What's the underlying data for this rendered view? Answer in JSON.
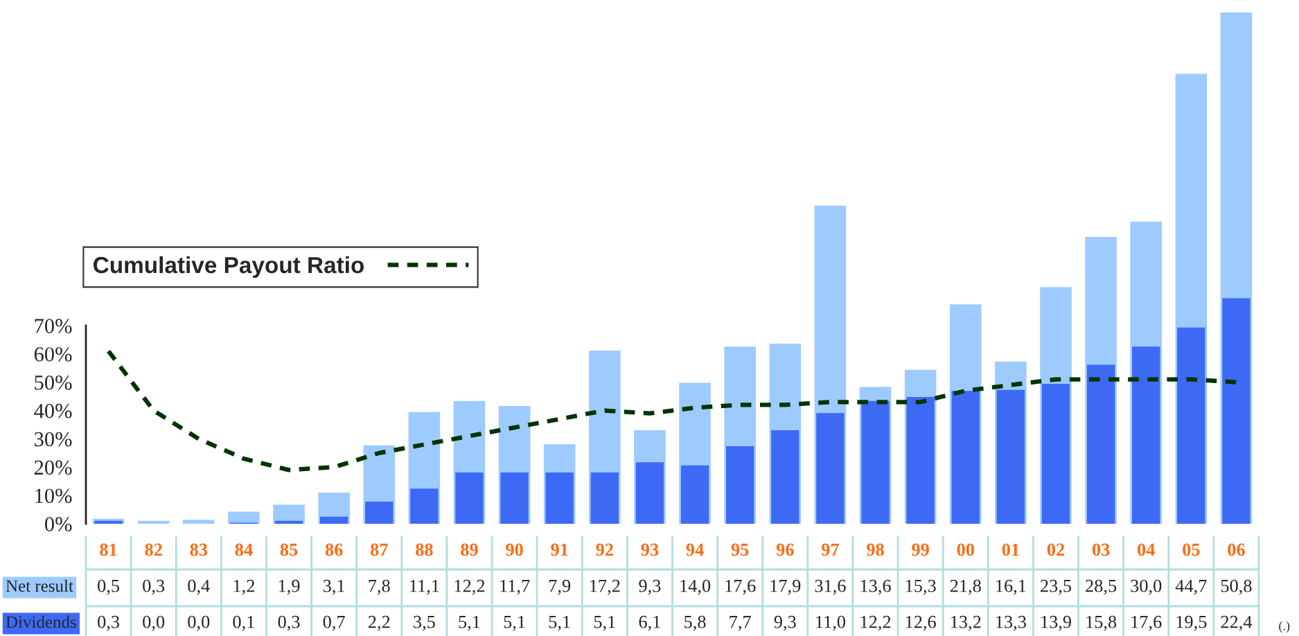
{
  "chart_data": {
    "type": "bar",
    "categories": [
      "81",
      "82",
      "83",
      "84",
      "85",
      "86",
      "87",
      "88",
      "89",
      "90",
      "91",
      "92",
      "93",
      "94",
      "95",
      "96",
      "97",
      "98",
      "99",
      "00",
      "01",
      "02",
      "03",
      "04",
      "05",
      "06"
    ],
    "series": [
      {
        "name": "Net result",
        "color": "#9dcbff",
        "axis": "y2",
        "values": [
          0.5,
          0.3,
          0.4,
          1.2,
          1.9,
          3.1,
          7.8,
          11.1,
          12.2,
          11.7,
          7.9,
          17.2,
          9.3,
          14.0,
          17.6,
          17.9,
          31.6,
          13.6,
          15.3,
          21.8,
          16.1,
          23.5,
          28.5,
          30.0,
          44.7,
          50.8
        ],
        "value_labels": [
          "0,5",
          "0,3",
          "0,4",
          "1,2",
          "1,9",
          "3,1",
          "7,8",
          "11,1",
          "12,2",
          "11,7",
          "7,9",
          "17,2",
          "9,3",
          "14,0",
          "17,6",
          "17,9",
          "31,6",
          "13,6",
          "15,3",
          "21,8",
          "16,1",
          "23,5",
          "28,5",
          "30,0",
          "44,7",
          "50,8"
        ]
      },
      {
        "name": "Dividends",
        "color": "#3d6af5",
        "axis": "y2",
        "values": [
          0.3,
          0.0,
          0.0,
          0.1,
          0.3,
          0.7,
          2.2,
          3.5,
          5.1,
          5.1,
          5.1,
          5.1,
          6.1,
          5.8,
          7.7,
          9.3,
          11.0,
          12.2,
          12.6,
          13.2,
          13.3,
          13.9,
          15.8,
          17.6,
          19.5,
          22.4
        ],
        "value_labels": [
          "0,3",
          "0,0",
          "0,0",
          "0,1",
          "0,3",
          "0,7",
          "2,2",
          "3,5",
          "5,1",
          "5,1",
          "5,1",
          "5,1",
          "6,1",
          "5,8",
          "7,7",
          "9,3",
          "11,0",
          "12,2",
          "12,6",
          "13,2",
          "13,3",
          "13,9",
          "15,8",
          "17,6",
          "19,5",
          "22,4"
        ]
      },
      {
        "name": "Cumulative Payout Ratio",
        "type": "line",
        "color": "#003300",
        "line_style": "dashed",
        "values": [
          61,
          40,
          30,
          23,
          19,
          20,
          25,
          28,
          31,
          34,
          37,
          40,
          39,
          41,
          42,
          42,
          43,
          43,
          43,
          47,
          49,
          51,
          51,
          51,
          51,
          50
        ]
      }
    ],
    "ylim": [
      0,
      70
    ],
    "yticks": [
      {
        "value": 0,
        "label": "0%"
      },
      {
        "value": 10,
        "label": "10%"
      },
      {
        "value": 20,
        "label": "20%"
      },
      {
        "value": 30,
        "label": "30%"
      },
      {
        "value": 40,
        "label": "40%"
      },
      {
        "value": 50,
        "label": "50%"
      },
      {
        "value": 60,
        "label": "60%"
      },
      {
        "value": 70,
        "label": "70%"
      }
    ],
    "y2lim": [
      0,
      51
    ],
    "legend": "left",
    "grid": false,
    "marker": "none",
    "annotations": [
      "(.)"
    ]
  }
}
